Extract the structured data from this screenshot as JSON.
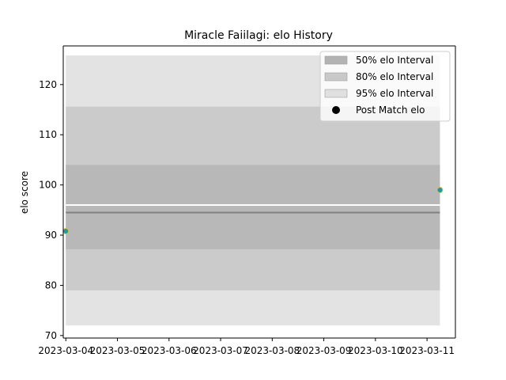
{
  "chart_data": {
    "type": "area",
    "title": "Miracle Faiilagi: elo History",
    "xlabel": "",
    "ylabel": "elo score",
    "x_ticks": [
      "2023-03-04",
      "2023-03-05",
      "2023-03-06",
      "2023-03-07",
      "2023-03-08",
      "2023-03-09",
      "2023-03-10",
      "2023-03-11"
    ],
    "xlim": [
      "2023-03-03 22:48",
      "2023-03-11 13:12"
    ],
    "ylim": [
      69.5,
      127.7
    ],
    "y_ticks": [
      70,
      80,
      90,
      100,
      110,
      120
    ],
    "grid": false,
    "legend_position": "upper right",
    "x_range": [
      "2023-03-04 00:00",
      "2023-03-11 06:00"
    ],
    "intervals": [
      {
        "name": "95% elo Interval",
        "low": 72.0,
        "high": 125.8,
        "color": "#e3e3e3"
      },
      {
        "name": "80% elo Interval",
        "low": 79.0,
        "high": 115.6,
        "color": "#cbcbcb"
      },
      {
        "name": "50% elo Interval",
        "low": 87.2,
        "high": 104.0,
        "color": "#b8b8b8"
      }
    ],
    "mean_line": {
      "value": 94.5,
      "color": "#808080"
    },
    "reference_line": {
      "value": 96.0,
      "color": "#ffffff"
    },
    "series": [
      {
        "name": "Post Match elo",
        "x": [
          "2023-03-04",
          "2023-03-11 06:00"
        ],
        "values": [
          90.8,
          99.0
        ],
        "color": "#1f9aa5",
        "edge": "#d7c24a"
      }
    ],
    "legend": [
      {
        "label": "50% elo Interval",
        "kind": "patch",
        "color": "#b3b3b3"
      },
      {
        "label": "80% elo Interval",
        "kind": "patch",
        "color": "#c9c9c9"
      },
      {
        "label": "95% elo Interval",
        "kind": "patch",
        "color": "#e0e0e0"
      },
      {
        "label": "Post Match elo",
        "kind": "marker",
        "color": "#000000"
      }
    ]
  }
}
